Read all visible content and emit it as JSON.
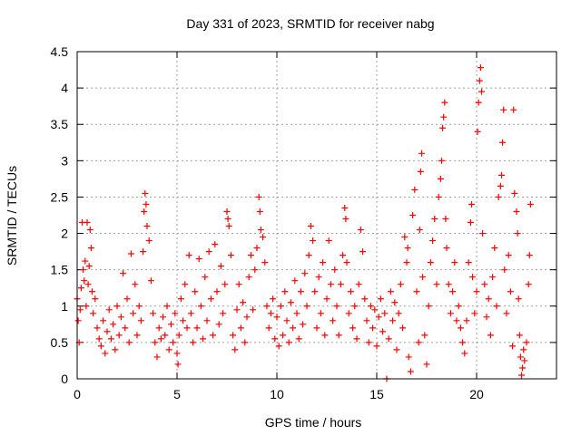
{
  "chart_data": {
    "type": "scatter",
    "title": "Day 331 of 2023, SRMTID for receiver nabg",
    "xlabel": "GPS time / hours",
    "ylabel": "SRMTID / TECUs",
    "xlim": [
      0,
      24
    ],
    "ylim": [
      0,
      4.5
    ],
    "xticks": [
      0,
      5,
      10,
      15,
      20
    ],
    "xtick_labels": [
      "0",
      "5",
      "10",
      "15",
      "20"
    ],
    "yticks": [
      0,
      0.5,
      1,
      1.5,
      2,
      2.5,
      3,
      3.5,
      4,
      4.5
    ],
    "ytick_labels": [
      "0",
      "0.5",
      "1",
      "1.5",
      "2",
      "2.5",
      "3",
      "3.5",
      "4",
      "4.5"
    ],
    "grid": true,
    "marker": "+",
    "color": "#ff0000",
    "series": [
      {
        "name": "SRMTID",
        "points": [
          [
            0.0,
            1.1
          ],
          [
            0.05,
            0.8
          ],
          [
            0.1,
            0.5
          ],
          [
            0.15,
            0.95
          ],
          [
            0.2,
            1.25
          ],
          [
            0.25,
            2.15
          ],
          [
            0.3,
            1.5
          ],
          [
            0.35,
            1.35
          ],
          [
            0.4,
            1.62
          ],
          [
            0.45,
            1.0
          ],
          [
            0.5,
            2.15
          ],
          [
            0.55,
            1.3
          ],
          [
            0.6,
            1.55
          ],
          [
            0.65,
            2.05
          ],
          [
            0.7,
            1.8
          ],
          [
            0.75,
            1.2
          ],
          [
            0.8,
            0.9
          ],
          [
            0.9,
            1.1
          ],
          [
            1.0,
            0.7
          ],
          [
            1.1,
            0.55
          ],
          [
            1.2,
            0.45
          ],
          [
            1.3,
            0.8
          ],
          [
            1.4,
            0.35
          ],
          [
            1.5,
            0.65
          ],
          [
            1.6,
            0.95
          ],
          [
            1.7,
            0.55
          ],
          [
            1.8,
            0.75
          ],
          [
            1.9,
            0.4
          ],
          [
            2.0,
            1.0
          ],
          [
            2.1,
            0.6
          ],
          [
            2.2,
            0.85
          ],
          [
            2.3,
            1.45
          ],
          [
            2.4,
            0.7
          ],
          [
            2.5,
            1.1
          ],
          [
            2.6,
            0.5
          ],
          [
            2.7,
            1.72
          ],
          [
            2.8,
            0.9
          ],
          [
            2.9,
            1.3
          ],
          [
            3.0,
            0.6
          ],
          [
            3.1,
            1.0
          ],
          [
            3.2,
            0.8
          ],
          [
            3.3,
            1.75
          ],
          [
            3.35,
            2.3
          ],
          [
            3.4,
            2.55
          ],
          [
            3.45,
            2.4
          ],
          [
            3.5,
            2.1
          ],
          [
            3.6,
            1.9
          ],
          [
            3.7,
            1.35
          ],
          [
            3.8,
            0.9
          ],
          [
            3.9,
            0.5
          ],
          [
            4.0,
            0.3
          ],
          [
            4.1,
            0.7
          ],
          [
            4.2,
            0.55
          ],
          [
            4.3,
            0.85
          ],
          [
            4.4,
            0.6
          ],
          [
            4.5,
            1.0
          ],
          [
            4.6,
            0.4
          ],
          [
            4.7,
            0.75
          ],
          [
            4.8,
            0.5
          ],
          [
            4.9,
            0.9
          ],
          [
            5.0,
            0.35
          ],
          [
            5.05,
            0.2
          ],
          [
            5.1,
            0.6
          ],
          [
            5.2,
            1.1
          ],
          [
            5.3,
            0.8
          ],
          [
            5.4,
            1.3
          ],
          [
            5.5,
            0.7
          ],
          [
            5.6,
            1.7
          ],
          [
            5.7,
            0.9
          ],
          [
            5.8,
            0.5
          ],
          [
            5.9,
            1.2
          ],
          [
            6.0,
            0.7
          ],
          [
            6.1,
            1.65
          ],
          [
            6.2,
            1.0
          ],
          [
            6.3,
            0.55
          ],
          [
            6.4,
            1.4
          ],
          [
            6.5,
            0.8
          ],
          [
            6.6,
            1.75
          ],
          [
            6.7,
            1.1
          ],
          [
            6.8,
            0.6
          ],
          [
            6.9,
            1.85
          ],
          [
            7.0,
            1.2
          ],
          [
            7.1,
            0.75
          ],
          [
            7.2,
            1.55
          ],
          [
            7.3,
            0.9
          ],
          [
            7.4,
            1.3
          ],
          [
            7.5,
            2.3
          ],
          [
            7.55,
            2.2
          ],
          [
            7.6,
            2.1
          ],
          [
            7.7,
            1.7
          ],
          [
            7.8,
            0.6
          ],
          [
            7.9,
            0.4
          ],
          [
            8.0,
            0.95
          ],
          [
            8.1,
            1.3
          ],
          [
            8.2,
            0.7
          ],
          [
            8.3,
            1.05
          ],
          [
            8.4,
            0.5
          ],
          [
            8.5,
            0.85
          ],
          [
            8.6,
            1.4
          ],
          [
            8.7,
            1.7
          ],
          [
            8.8,
            0.95
          ],
          [
            8.9,
            1.5
          ],
          [
            9.0,
            1.8
          ],
          [
            9.1,
            2.5
          ],
          [
            9.15,
            2.3
          ],
          [
            9.2,
            2.05
          ],
          [
            9.3,
            1.95
          ],
          [
            9.4,
            1.6
          ],
          [
            9.5,
            1.0
          ],
          [
            9.6,
            0.7
          ],
          [
            9.7,
            0.9
          ],
          [
            9.8,
            1.1
          ],
          [
            9.9,
            0.55
          ],
          [
            10.0,
            0.85
          ],
          [
            10.1,
            0.45
          ],
          [
            10.2,
            1.0
          ],
          [
            10.3,
            0.6
          ],
          [
            10.4,
            1.2
          ],
          [
            10.5,
            0.8
          ],
          [
            10.6,
            0.5
          ],
          [
            10.7,
            1.05
          ],
          [
            10.8,
            0.7
          ],
          [
            10.9,
            1.35
          ],
          [
            11.0,
            0.9
          ],
          [
            11.1,
            0.55
          ],
          [
            11.2,
            1.2
          ],
          [
            11.3,
            0.75
          ],
          [
            11.4,
            1.45
          ],
          [
            11.5,
            1.0
          ],
          [
            11.6,
            1.7
          ],
          [
            11.7,
            2.1
          ],
          [
            11.8,
            1.9
          ],
          [
            11.9,
            1.2
          ],
          [
            12.0,
            0.7
          ],
          [
            12.1,
            1.4
          ],
          [
            12.2,
            0.9
          ],
          [
            12.3,
            1.6
          ],
          [
            12.4,
            0.6
          ],
          [
            12.5,
            1.1
          ],
          [
            12.6,
            1.9
          ],
          [
            12.7,
            1.3
          ],
          [
            12.8,
            0.8
          ],
          [
            12.9,
            1.5
          ],
          [
            13.0,
            1.0
          ],
          [
            13.1,
            0.6
          ],
          [
            13.2,
            1.3
          ],
          [
            13.3,
            1.7
          ],
          [
            13.4,
            2.35
          ],
          [
            13.45,
            2.2
          ],
          [
            13.5,
            1.6
          ],
          [
            13.6,
            0.9
          ],
          [
            13.7,
            1.2
          ],
          [
            13.8,
            0.7
          ],
          [
            13.9,
            1.0
          ],
          [
            14.0,
            0.55
          ],
          [
            14.1,
            1.3
          ],
          [
            14.2,
            2.05
          ],
          [
            14.3,
            1.75
          ],
          [
            14.4,
            1.1
          ],
          [
            14.5,
            0.8
          ],
          [
            14.6,
            0.5
          ],
          [
            14.7,
            1.0
          ],
          [
            14.8,
            0.7
          ],
          [
            14.9,
            0.95
          ],
          [
            15.0,
            0.45
          ],
          [
            15.1,
            0.85
          ],
          [
            15.2,
            1.1
          ],
          [
            15.3,
            0.65
          ],
          [
            15.4,
            0.9
          ],
          [
            15.5,
            0.0
          ],
          [
            15.6,
            0.55
          ],
          [
            15.7,
            1.2
          ],
          [
            15.8,
            0.8
          ],
          [
            15.9,
            1.05
          ],
          [
            16.0,
            0.4
          ],
          [
            16.1,
            0.9
          ],
          [
            16.2,
            1.3
          ],
          [
            16.3,
            0.7
          ],
          [
            16.4,
            1.95
          ],
          [
            16.5,
            1.6
          ],
          [
            16.55,
            1.8
          ],
          [
            16.6,
            0.3
          ],
          [
            16.7,
            0.1
          ],
          [
            16.8,
            2.25
          ],
          [
            16.9,
            2.6
          ],
          [
            17.0,
            1.2
          ],
          [
            17.1,
            0.5
          ],
          [
            17.15,
            2.05
          ],
          [
            17.2,
            2.85
          ],
          [
            17.25,
            3.1
          ],
          [
            17.3,
            1.4
          ],
          [
            17.4,
            0.6
          ],
          [
            17.5,
            0.2
          ],
          [
            17.6,
            1.0
          ],
          [
            17.7,
            1.6
          ],
          [
            17.8,
            1.9
          ],
          [
            17.9,
            2.2
          ],
          [
            18.0,
            1.3
          ],
          [
            18.1,
            2.5
          ],
          [
            18.2,
            2.75
          ],
          [
            18.25,
            3.0
          ],
          [
            18.3,
            3.45
          ],
          [
            18.35,
            3.6
          ],
          [
            18.4,
            3.8
          ],
          [
            18.45,
            2.2
          ],
          [
            18.5,
            1.8
          ],
          [
            18.6,
            1.3
          ],
          [
            18.7,
            0.9
          ],
          [
            18.8,
            1.2
          ],
          [
            18.9,
            1.6
          ],
          [
            19.0,
            0.8
          ],
          [
            19.1,
            1.0
          ],
          [
            19.2,
            0.7
          ],
          [
            19.3,
            0.5
          ],
          [
            19.4,
            0.35
          ],
          [
            19.5,
            0.8
          ],
          [
            19.6,
            1.6
          ],
          [
            19.7,
            2.15
          ],
          [
            19.75,
            2.4
          ],
          [
            19.8,
            1.4
          ],
          [
            19.9,
            0.9
          ],
          [
            20.0,
            1.2
          ],
          [
            20.05,
            3.4
          ],
          [
            20.1,
            3.8
          ],
          [
            20.15,
            4.1
          ],
          [
            20.2,
            4.28
          ],
          [
            20.25,
            3.95
          ],
          [
            20.3,
            2.0
          ],
          [
            20.4,
            1.3
          ],
          [
            20.5,
            0.85
          ],
          [
            20.6,
            1.1
          ],
          [
            20.7,
            0.6
          ],
          [
            20.8,
            1.4
          ],
          [
            20.9,
            1.8
          ],
          [
            21.0,
            1.0
          ],
          [
            21.1,
            2.5
          ],
          [
            21.2,
            2.65
          ],
          [
            21.25,
            2.8
          ],
          [
            21.3,
            3.25
          ],
          [
            21.35,
            3.7
          ],
          [
            21.4,
            1.5
          ],
          [
            21.5,
            0.9
          ],
          [
            21.6,
            1.7
          ],
          [
            21.7,
            1.2
          ],
          [
            21.8,
            0.45
          ],
          [
            21.85,
            3.7
          ],
          [
            21.9,
            2.55
          ],
          [
            22.0,
            2.3
          ],
          [
            22.05,
            2.0
          ],
          [
            22.1,
            1.1
          ],
          [
            22.15,
            0.6
          ],
          [
            22.2,
            0.3
          ],
          [
            22.25,
            0.05
          ],
          [
            22.3,
            0.15
          ],
          [
            22.35,
            0.4
          ],
          [
            22.4,
            0.25
          ],
          [
            22.5,
            0.5
          ],
          [
            22.6,
            1.3
          ],
          [
            22.65,
            1.7
          ],
          [
            22.7,
            2.4
          ]
        ]
      }
    ]
  }
}
